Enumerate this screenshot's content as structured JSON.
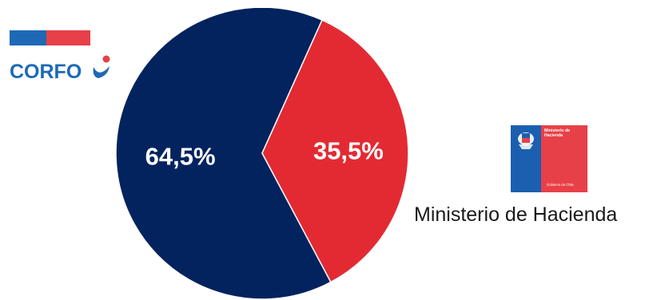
{
  "chart_data": {
    "type": "pie",
    "slices": [
      {
        "label": "64,5%",
        "value": 64.5,
        "color": "#03235e"
      },
      {
        "label": "35,5%",
        "value": 35.5,
        "color": "#e32a33"
      }
    ],
    "label_color": "#ffffff"
  },
  "logos": {
    "corfo": {
      "text": "CORFO",
      "bar_colors": [
        "#1e69b6",
        "#e84048"
      ],
      "text_color": "#1e69b6"
    },
    "ministerio": {
      "line1": "Ministerio de",
      "line2": "Hacienda",
      "footer": "Gobierno de Chile",
      "colors": [
        "#1b5fb0",
        "#e84048"
      ]
    }
  },
  "caption": "Ministerio de Hacienda"
}
